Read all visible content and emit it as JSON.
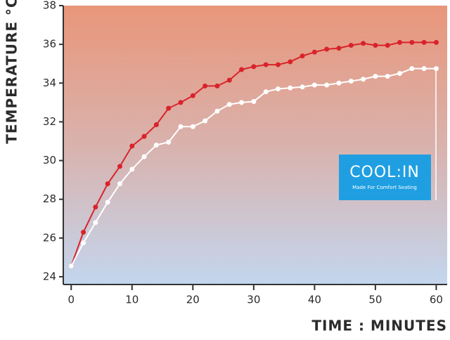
{
  "chart_data": {
    "type": "line",
    "y_label": "TEMPERATURE °C",
    "x_label": "TIME : MINUTES",
    "annotations": [
      "COOL:IN",
      "Made For Comfort Seating"
    ],
    "x": [
      0,
      2,
      4,
      6,
      8,
      10,
      12,
      14,
      16,
      18,
      20,
      22,
      24,
      26,
      28,
      30,
      32,
      34,
      36,
      38,
      40,
      42,
      44,
      46,
      48,
      50,
      52,
      54,
      56,
      58,
      60
    ],
    "series": [
      {
        "color": "#d9232b",
        "values": [
          24.55,
          26.3,
          27.6,
          28.8,
          29.7,
          30.75,
          31.25,
          31.85,
          32.7,
          33.0,
          33.35,
          33.85,
          33.85,
          34.15,
          34.7,
          34.85,
          34.95,
          34.95,
          35.1,
          35.4,
          35.6,
          35.75,
          35.8,
          35.95,
          36.05,
          35.95,
          35.95,
          36.1,
          36.1,
          36.1,
          36.1
        ]
      },
      {
        "color": "#ffffff",
        "values": [
          24.55,
          25.75,
          26.8,
          27.85,
          28.8,
          29.55,
          30.2,
          30.8,
          30.95,
          31.75,
          31.75,
          32.05,
          32.55,
          32.9,
          33.0,
          33.05,
          33.55,
          33.7,
          33.75,
          33.8,
          33.9,
          33.9,
          34.0,
          34.1,
          34.2,
          34.35,
          34.35,
          34.5,
          34.75,
          34.75,
          34.75
        ]
      }
    ],
    "xlim": [
      -1.3,
      61.8
    ],
    "ylim": [
      23.6,
      38
    ],
    "xticks": [
      0,
      10,
      20,
      30,
      40,
      50,
      60
    ],
    "yticks": [
      24,
      26,
      28,
      30,
      32,
      34,
      36,
      38
    ]
  }
}
